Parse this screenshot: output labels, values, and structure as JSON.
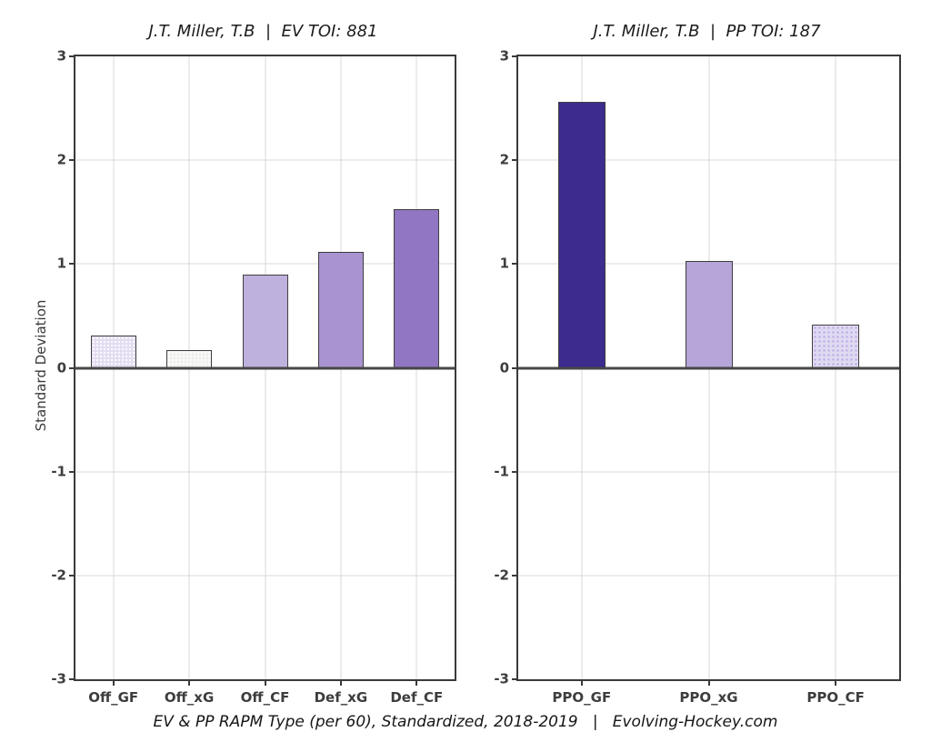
{
  "figure": {
    "caption": "EV & PP RAPM Type (per 60), Standardized, 2018-2019   |   Evolving-Hockey.com"
  },
  "chart_data": [
    {
      "type": "bar",
      "title": "J.T. Miller, T.B  |  EV TOI: 881",
      "ylabel": "Standard Deviation",
      "ylim": [
        -3,
        3
      ],
      "yticks": [
        3,
        2,
        1,
        0,
        -1,
        -2,
        -3
      ],
      "grid": true,
      "legend": "none",
      "categories": [
        "Off_GF",
        "Off_xG",
        "Off_CF",
        "Def_xG",
        "Def_CF"
      ],
      "values": [
        0.31,
        0.17,
        0.9,
        1.12,
        1.53
      ],
      "bar_colors": [
        "#e3dcf2",
        "#f1f1ee",
        "#bfb1de",
        "#a994d1",
        "#9076c3"
      ],
      "bar_texture": [
        "dotted-white",
        "dotted-white",
        "solid",
        "solid",
        "solid"
      ]
    },
    {
      "type": "bar",
      "title": "J.T. Miller, T.B  |  PP TOI: 187",
      "ylabel": "",
      "ylim": [
        -3,
        3
      ],
      "yticks": [
        3,
        2,
        1,
        0,
        -1,
        -2,
        -3
      ],
      "grid": true,
      "legend": "none",
      "categories": [
        "PPO_GF",
        "PPO_xG",
        "PPO_CF"
      ],
      "values": [
        2.56,
        1.03,
        0.42
      ],
      "bar_colors": [
        "#3d2b8e",
        "#b5a5d8",
        "#e0d9f2"
      ],
      "bar_texture": [
        "solid",
        "solid",
        "dotted-purple"
      ]
    }
  ]
}
